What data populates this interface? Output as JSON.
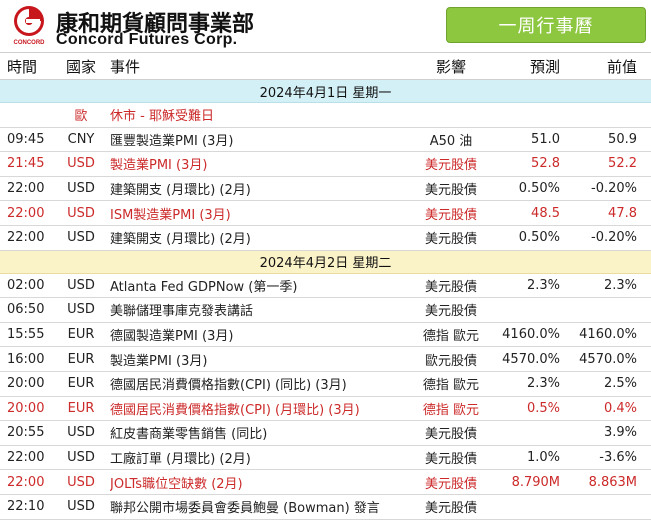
{
  "brand": {
    "name_cn": "康和期貨顧問事業部",
    "name_en": "Concord Futures Corp.",
    "logo_text": "CONCORD",
    "logo_color": "#c8161d"
  },
  "header_button": {
    "label": "一周行事曆",
    "color": "#8dc63f"
  },
  "table": {
    "columns": {
      "time": "時間",
      "country": "國家",
      "event": "事件",
      "impact": "影響",
      "forecast": "預測",
      "previous": "前值"
    },
    "groups": [
      {
        "date": "2024年4月1日   星期一",
        "rows": [
          {
            "time": "",
            "country": "歐",
            "event": "休市 - 耶穌受難日",
            "impact": "",
            "forecast": "",
            "previous": "",
            "red": true
          },
          {
            "time": "09:45",
            "country": "CNY",
            "event": "匯豐製造業PMI (3月)",
            "impact": "A50 油",
            "forecast": "51.0",
            "previous": "50.9",
            "red": false
          },
          {
            "time": "21:45",
            "country": "USD",
            "event": "製造業PMI (3月)",
            "impact": "美元股債",
            "forecast": "52.8",
            "previous": "52.2",
            "red": true
          },
          {
            "time": "22:00",
            "country": "USD",
            "event": "建築開支 (月環比) (2月)",
            "impact": "美元股債",
            "forecast": "0.50%",
            "previous": "-0.20%",
            "red": false
          },
          {
            "time": "22:00",
            "country": "USD",
            "event": "ISM製造業PMI (3月)",
            "impact": "美元股債",
            "forecast": "48.5",
            "previous": "47.8",
            "red": true
          },
          {
            "time": "22:00",
            "country": "USD",
            "event": "建築開支 (月環比) (2月)",
            "impact": "美元股債",
            "forecast": "0.50%",
            "previous": "-0.20%",
            "red": false
          }
        ]
      },
      {
        "date": "2024年4月2日   星期二",
        "rows": [
          {
            "time": "02:00",
            "country": "USD",
            "event": "Atlanta Fed GDPNow (第一季)",
            "impact": "美元股債",
            "forecast": "2.3%",
            "previous": "2.3%",
            "red": false
          },
          {
            "time": "06:50",
            "country": "USD",
            "event": "美聯儲理事庫克發表講話",
            "impact": "美元股債",
            "forecast": "",
            "previous": "",
            "red": false
          },
          {
            "time": "15:55",
            "country": "EUR",
            "event": "德國製造業PMI (3月)",
            "impact": "德指 歐元",
            "forecast": "4160.0%",
            "previous": "4160.0%",
            "red": false
          },
          {
            "time": "16:00",
            "country": "EUR",
            "event": "製造業PMI (3月)",
            "impact": "歐元股債",
            "forecast": "4570.0%",
            "previous": "4570.0%",
            "red": false
          },
          {
            "time": "20:00",
            "country": "EUR",
            "event": "德國居民消費價格指數(CPI) (同比) (3月)",
            "impact": "德指 歐元",
            "forecast": "2.3%",
            "previous": "2.5%",
            "red": false
          },
          {
            "time": "20:00",
            "country": "EUR",
            "event": "德國居民消費價格指數(CPI) (月環比) (3月)",
            "impact": "德指 歐元",
            "forecast": "0.5%",
            "previous": "0.4%",
            "red": true
          },
          {
            "time": "20:55",
            "country": "USD",
            "event": "紅皮書商業零售銷售 (同比)",
            "impact": "美元股債",
            "forecast": "",
            "previous": "3.9%",
            "red": false
          },
          {
            "time": "22:00",
            "country": "USD",
            "event": "工廠訂單 (月環比) (2月)",
            "impact": "美元股債",
            "forecast": "1.0%",
            "previous": "-3.6%",
            "red": false
          },
          {
            "time": "22:00",
            "country": "USD",
            "event": "JOLTs職位空缺數 (2月)",
            "impact": "美元股債",
            "forecast": "8.790M",
            "previous": "8.863M",
            "red": true
          },
          {
            "time": "22:10",
            "country": "USD",
            "event": "聯邦公開市場委員會委員鮑曼 (Bowman) 發言",
            "impact": "美元股債",
            "forecast": "",
            "previous": "",
            "red": false
          }
        ]
      }
    ]
  }
}
